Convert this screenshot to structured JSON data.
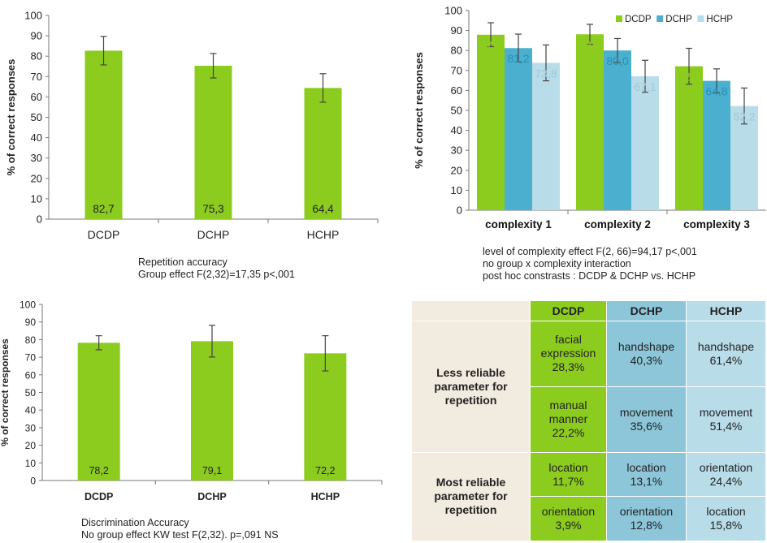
{
  "charts": {
    "repetition": {
      "ylabel": "% of correct responses",
      "caption": [
        "Repetition accuracy",
        "Group effect F(2,32)=17,35 p<,001"
      ]
    },
    "complexity": {
      "ylabel": "% of correct responses",
      "caption": [
        "level of complexity effect F(2, 66)=94,17 p<,001",
        "no group x complexity interaction",
        "post hoc constrasts : DCDP & DCHP vs. HCHP"
      ]
    },
    "discrimination": {
      "ylabel": "% of correct responses",
      "caption": [
        "Discrimination Accuracy",
        "No group effect KW test F(2,32). p=,091 NS"
      ]
    }
  },
  "chart_data": [
    {
      "type": "bar",
      "title": "",
      "xlabel": "",
      "ylabel": "% of correct responses",
      "ylim": [
        0,
        100
      ],
      "yticks": [
        "0",
        "10",
        "20",
        "30",
        "40",
        "50",
        "60",
        "70",
        "80",
        "90",
        "100"
      ],
      "categories": [
        "DCDP",
        "DCHP",
        "HCHP"
      ],
      "values": [
        82.7,
        75.3,
        64.4
      ],
      "value_labels": [
        "82,7",
        "75,3",
        "64,4"
      ],
      "errors": [
        7,
        6,
        7
      ],
      "color": "#8ccc1e",
      "grid": false
    },
    {
      "type": "bar",
      "title": "",
      "xlabel": "",
      "ylabel": "% of correct responses",
      "ylim": [
        0,
        100
      ],
      "yticks": [
        "0",
        "10",
        "20",
        "30",
        "40",
        "50",
        "60",
        "70",
        "80",
        "90",
        "100"
      ],
      "categories": [
        "complexity 1",
        "complexity 2",
        "complexity 3"
      ],
      "series": [
        {
          "name": "DCDP",
          "values": [
            87.9,
            88.1,
            72.1
          ],
          "labels": [
            "87,9",
            "88,1",
            "72,1"
          ],
          "errors": [
            6,
            5,
            9
          ],
          "color": "#8ccc1e",
          "label_color": "#8ccc1e"
        },
        {
          "name": "DCHP",
          "values": [
            81.2,
            80.0,
            64.8
          ],
          "labels": [
            "81,2",
            "80,0",
            "64,8"
          ],
          "errors": [
            7,
            6,
            6
          ],
          "color": "#4bb0cf",
          "label_color": "#2a8fb2"
        },
        {
          "name": "HCHP",
          "values": [
            73.8,
            67.1,
            52.2
          ],
          "labels": [
            "73,8",
            "67,1",
            "52,2"
          ],
          "errors": [
            9,
            8,
            9
          ],
          "color": "#b9dce9",
          "label_color": "#9cc9dc"
        }
      ],
      "legend": "top-right",
      "grid": false
    },
    {
      "type": "bar",
      "title": "",
      "xlabel": "",
      "ylabel": "% of correct responses",
      "ylim": [
        0,
        100
      ],
      "yticks": [
        "0",
        "10",
        "20",
        "30",
        "40",
        "50",
        "60",
        "70",
        "80",
        "90",
        "100"
      ],
      "categories": [
        "DCDP",
        "DCHP",
        "HCHP"
      ],
      "values": [
        78.2,
        79.1,
        72.2
      ],
      "value_labels": [
        "78,2",
        "79,1",
        "72,2"
      ],
      "errors": [
        4,
        9,
        10
      ],
      "color": "#8ccc1e",
      "grid": false
    }
  ],
  "table": {
    "headers": [
      "DCDP",
      "DCHP",
      "HCHP"
    ],
    "sections": [
      {
        "label": [
          "Less reliable",
          "parameter for",
          "repetition"
        ],
        "rows": [
          [
            [
              "facial",
              "expression",
              "28,3%"
            ],
            [
              "handshape",
              "40,3%"
            ],
            [
              "handshape",
              "61,4%"
            ]
          ],
          [
            [
              "manual",
              "manner",
              "22,2%"
            ],
            [
              "movement",
              "35,6%"
            ],
            [
              "movement",
              "51,4%"
            ]
          ]
        ]
      },
      {
        "label": [
          "Most reliable",
          "parameter for",
          "repetition"
        ],
        "rows": [
          [
            [
              "location",
              "11,7%"
            ],
            [
              "location",
              "13,1%"
            ],
            [
              "orientation",
              "24,4%"
            ]
          ],
          [
            [
              "orientation",
              "3,9%"
            ],
            [
              "orientation",
              "12,8%"
            ],
            [
              "location",
              "15,8%"
            ]
          ]
        ]
      }
    ]
  },
  "colors": {
    "dcdp": "#8ccc1e",
    "dchp": "#4bb0cf",
    "hchp": "#b9dce9",
    "table_bg": "#f2ebe0"
  }
}
